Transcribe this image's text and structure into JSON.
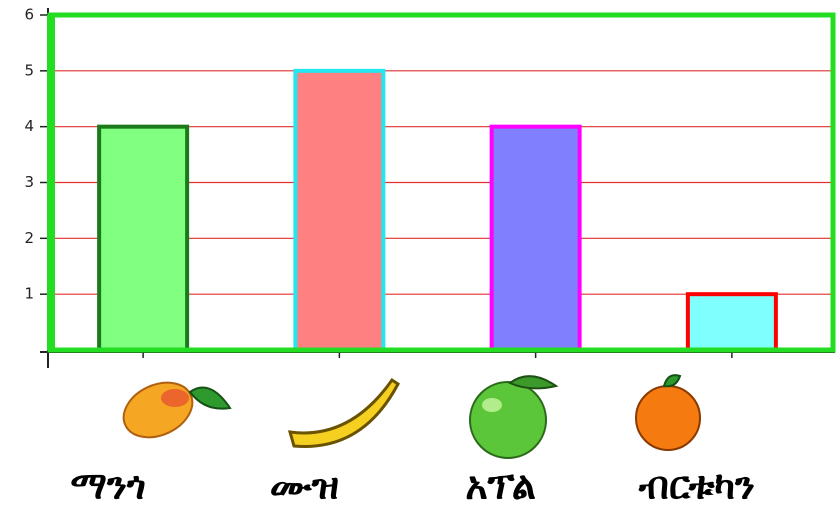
{
  "chart_data": {
    "type": "bar",
    "categories": [
      "ማንጎ",
      "ሙዝ",
      "አፕል",
      "ብርቱካን"
    ],
    "values": [
      4,
      5,
      4,
      1
    ],
    "colors": [
      "#80ff80",
      "#ff8080",
      "#8080ff",
      "#80ffff"
    ],
    "edge_colors": [
      "#1a7a1a",
      "#22e6f0",
      "#ff00ff",
      "#ff0000"
    ],
    "ylim": [
      0,
      6
    ],
    "yticks": [
      1,
      2,
      3,
      4,
      5,
      6
    ],
    "grid": true,
    "grid_color": "#e03030",
    "frame_color": "#22dd22"
  }
}
